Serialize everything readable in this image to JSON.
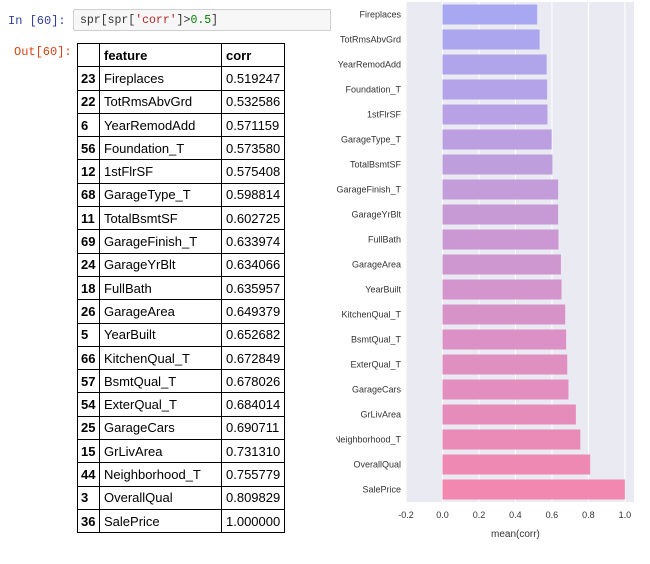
{
  "cell": {
    "in_prompt": "In  [60]:",
    "code_prefix": "spr[spr[",
    "code_str": "'corr'",
    "code_mid": "]>",
    "code_num": "0.5",
    "code_suffix": "]",
    "out_prompt": "Out[60]:"
  },
  "table": {
    "headers": [
      "",
      "feature",
      "corr"
    ],
    "rows": [
      {
        "index": "23",
        "feature": "Fireplaces",
        "corr": "0.519247"
      },
      {
        "index": "22",
        "feature": "TotRmsAbvGrd",
        "corr": "0.532586"
      },
      {
        "index": "6",
        "feature": "YearRemodAdd",
        "corr": "0.571159"
      },
      {
        "index": "56",
        "feature": "Foundation_T",
        "corr": "0.573580"
      },
      {
        "index": "12",
        "feature": "1stFlrSF",
        "corr": "0.575408"
      },
      {
        "index": "68",
        "feature": "GarageType_T",
        "corr": "0.598814"
      },
      {
        "index": "11",
        "feature": "TotalBsmtSF",
        "corr": "0.602725"
      },
      {
        "index": "69",
        "feature": "GarageFinish_T",
        "corr": "0.633974"
      },
      {
        "index": "24",
        "feature": "GarageYrBlt",
        "corr": "0.634066"
      },
      {
        "index": "18",
        "feature": "FullBath",
        "corr": "0.635957"
      },
      {
        "index": "26",
        "feature": "GarageArea",
        "corr": "0.649379"
      },
      {
        "index": "5",
        "feature": "YearBuilt",
        "corr": "0.652682"
      },
      {
        "index": "66",
        "feature": "KitchenQual_T",
        "corr": "0.672849"
      },
      {
        "index": "57",
        "feature": "BsmtQual_T",
        "corr": "0.678026"
      },
      {
        "index": "54",
        "feature": "ExterQual_T",
        "corr": "0.684014"
      },
      {
        "index": "25",
        "feature": "GarageCars",
        "corr": "0.690711"
      },
      {
        "index": "15",
        "feature": "GrLivArea",
        "corr": "0.731310"
      },
      {
        "index": "44",
        "feature": "Neighborhood_T",
        "corr": "0.755779"
      },
      {
        "index": "3",
        "feature": "OverallQual",
        "corr": "0.809829"
      },
      {
        "index": "36",
        "feature": "SalePrice",
        "corr": "1.000000"
      }
    ]
  },
  "chart_data": {
    "type": "bar",
    "orientation": "horizontal",
    "categories": [
      "Fireplaces",
      "TotRmsAbvGrd",
      "YearRemodAdd",
      "Foundation_T",
      "1stFlrSF",
      "GarageType_T",
      "TotalBsmtSF",
      "GarageFinish_T",
      "GarageYrBlt",
      "FullBath",
      "GarageArea",
      "YearBuilt",
      "KitchenQual_T",
      "BsmtQual_T",
      "ExterQual_T",
      "GarageCars",
      "GrLivArea",
      "Neighborhood_T",
      "OverallQual",
      "SalePrice"
    ],
    "values": [
      0.519247,
      0.532586,
      0.571159,
      0.57358,
      0.575408,
      0.598814,
      0.602725,
      0.633974,
      0.634066,
      0.635957,
      0.649379,
      0.652682,
      0.672849,
      0.678026,
      0.684014,
      0.690711,
      0.73131,
      0.755779,
      0.809829,
      1.0
    ],
    "xlabel": "mean(corr)",
    "ylabel": "",
    "xlim": [
      -0.2,
      1.05
    ],
    "xticks": [
      "-0.2",
      "0.0",
      "0.2",
      "0.4",
      "0.6",
      "0.8",
      "1.0"
    ],
    "grid": true,
    "background": "#eaeaf2",
    "bar_color_start": "#a8a8f2",
    "bar_color_end": "#f287b0"
  }
}
